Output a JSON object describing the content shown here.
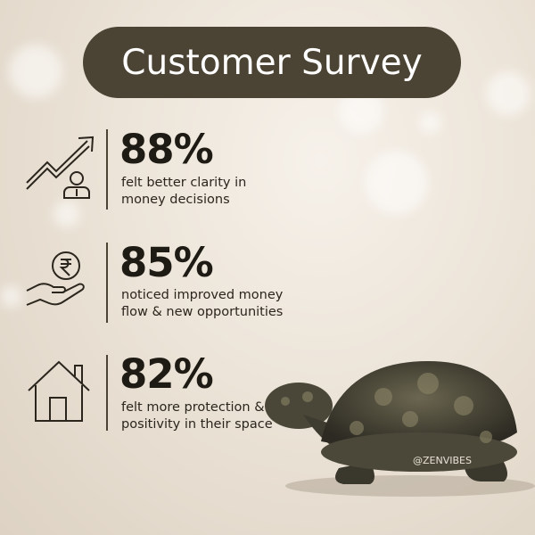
{
  "header": {
    "title": "Customer Survey"
  },
  "stats": [
    {
      "value": "88%",
      "description_lines": [
        "felt better clarity in",
        "money decisions"
      ]
    },
    {
      "value": "85%",
      "description_lines": [
        "noticed improved money",
        "flow & new opportunities"
      ]
    },
    {
      "value": "82%",
      "description_lines": [
        "felt more protection &",
        "positivity in their space"
      ]
    }
  ],
  "watermark": "@ZENVIBES"
}
